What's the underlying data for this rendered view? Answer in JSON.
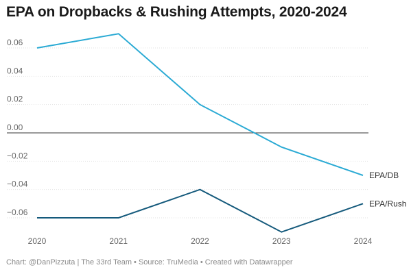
{
  "title": "EPA on Dropbacks & Rushing Attempts, 2020-2024",
  "footer": "Chart: @DanPizzuta | The 33rd Team • Source: TruMedia • Created with Datawrapper",
  "chart_data": {
    "type": "line",
    "title": "EPA on Dropbacks & Rushing Attempts, 2020-2024",
    "xlabel": "",
    "ylabel": "",
    "x": [
      "2020",
      "2021",
      "2022",
      "2023",
      "2024"
    ],
    "ylim": [
      -0.07,
      0.07
    ],
    "yticks": [
      0.06,
      0.04,
      0.02,
      0.0,
      -0.02,
      -0.04,
      -0.06
    ],
    "ytick_labels": [
      "0.06",
      "0.04",
      "0.02",
      "0.00",
      "−0.02",
      "−0.04",
      "−0.06"
    ],
    "grid": true,
    "legend": "direct labels at line ends",
    "series": [
      {
        "name": "EPA/DB",
        "color": "#2aaad4",
        "values": [
          0.06,
          0.07,
          0.02,
          -0.01,
          -0.03
        ]
      },
      {
        "name": "EPA/Rush",
        "color": "#155a7c",
        "values": [
          -0.06,
          -0.06,
          -0.04,
          -0.07,
          -0.05
        ]
      }
    ]
  }
}
